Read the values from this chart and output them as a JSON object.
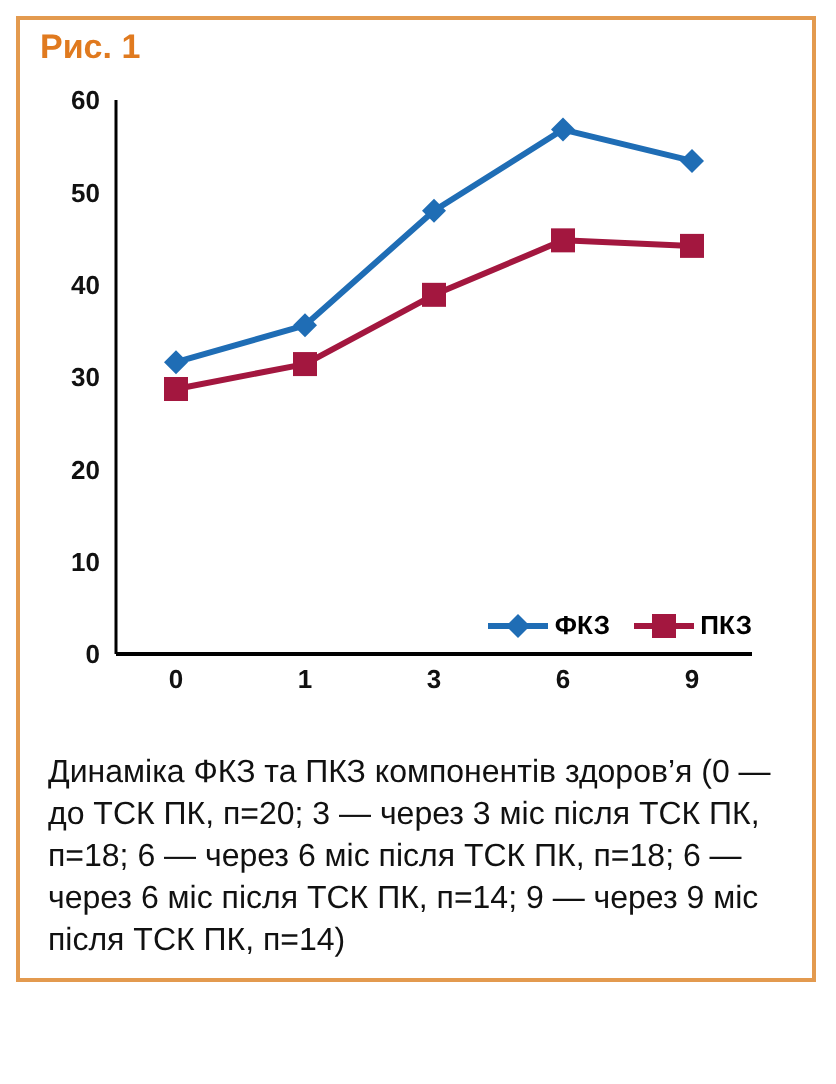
{
  "chart_data": {
    "type": "line",
    "title": "Рис. 1",
    "categories": [
      "0",
      "1",
      "3",
      "6",
      "9"
    ],
    "series": [
      {
        "name": "ФКЗ",
        "color": "#1f6db5",
        "marker": "diamond",
        "values": [
          31.6,
          35.6,
          48.0,
          56.8,
          53.4
        ]
      },
      {
        "name": "ПКЗ",
        "color": "#a3173f",
        "marker": "square",
        "values": [
          28.7,
          31.4,
          38.9,
          44.8,
          44.2
        ]
      }
    ],
    "ylim": [
      0,
      60
    ],
    "yticks": [
      0,
      10,
      20,
      30,
      40,
      50,
      60
    ],
    "grid": false,
    "legend": "bottom right",
    "annotations": [
      "Динаміка ФКЗ та ПКЗ компонентів здоров’я (0 — до ТСК ПК, п=20; 3 — через 3 міс після ТСК ПК, п=18; 6 — через 6 міс після ТСК ПК, п=18; 6 — через 6 міс після ТСК ПК, п=14; 9 — через 9 міс після ТСК ПК, п=14)"
    ]
  }
}
